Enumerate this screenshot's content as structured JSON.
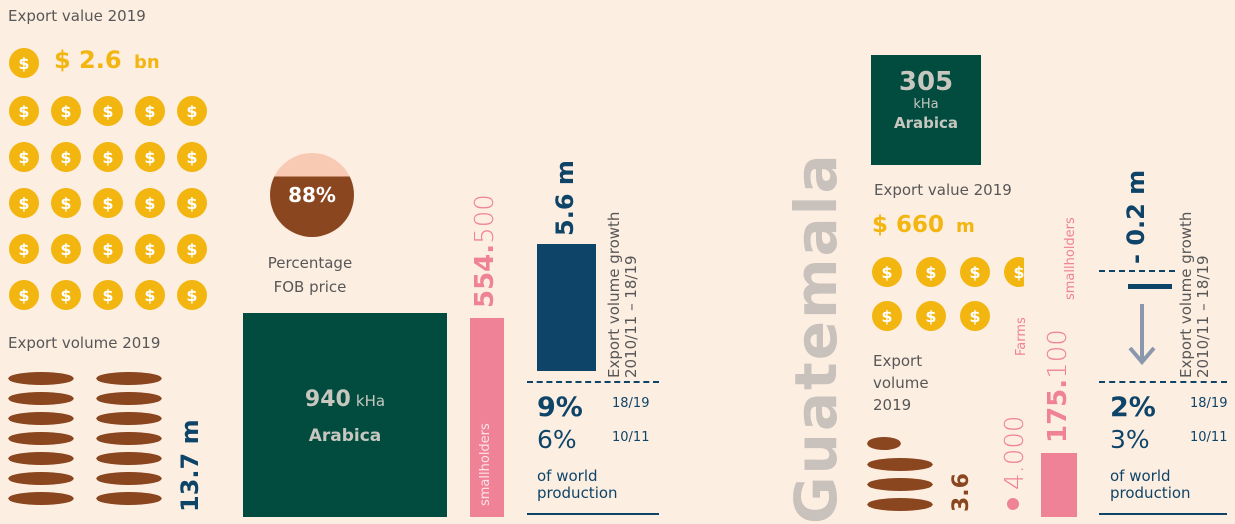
{
  "left": {
    "export_value_title": "Export value 2019",
    "coin_symbol": "$",
    "value_amount": "$ 2.6",
    "value_unit": "bn",
    "export_volume_title": "Export volume 2019",
    "volume_amount": "13.7 m",
    "fob_percent": "88%",
    "fob_label_1": "Percentage",
    "fob_label_2": "FOB price",
    "area_value": "940",
    "area_unit": "kHa",
    "area_type": "Arabica",
    "smallholders_bold": "554.",
    "smallholders_light": "500",
    "smallholders_label": "smallholders",
    "growth_value": "5.6 m",
    "growth_label_1": "Export volume growth",
    "growth_label_2": "2010/11 – 18/19",
    "share_recent": "9%",
    "share_recent_year": "18/19",
    "share_past": "6%",
    "share_past_year": "10/11",
    "share_label_1": "of world",
    "share_label_2": "production"
  },
  "right": {
    "country": "Guatemala",
    "area_value": "305",
    "area_unit": "kHa",
    "area_type": "Arabica",
    "export_value_title": "Export value 2019",
    "value_amount": "$ 660",
    "value_unit": "m",
    "coin_symbol": "$",
    "export_volume_1": "Export",
    "export_volume_2": "volume",
    "export_volume_3": "2019",
    "volume_amount": "3.6",
    "farms_value": "4.000",
    "farms_label": "Farms",
    "smallholders_bold": "175.",
    "smallholders_light": "100",
    "smallholders_label": "smallholders",
    "growth_value": "- 0.2 m",
    "growth_label_1": "Export volume growth",
    "growth_label_2": "2010/11 – 18/19",
    "share_recent": "2%",
    "share_recent_year": "18/19",
    "share_past": "3%",
    "share_past_year": "10/11",
    "share_label_1": "of world",
    "share_label_2": "production"
  },
  "colors": {
    "background": "#fdeee2",
    "gold": "#f3b50f",
    "brown": "#8a461f",
    "dark_green": "#014c3e",
    "navy": "#0e4468",
    "pink": "#ef8297"
  }
}
